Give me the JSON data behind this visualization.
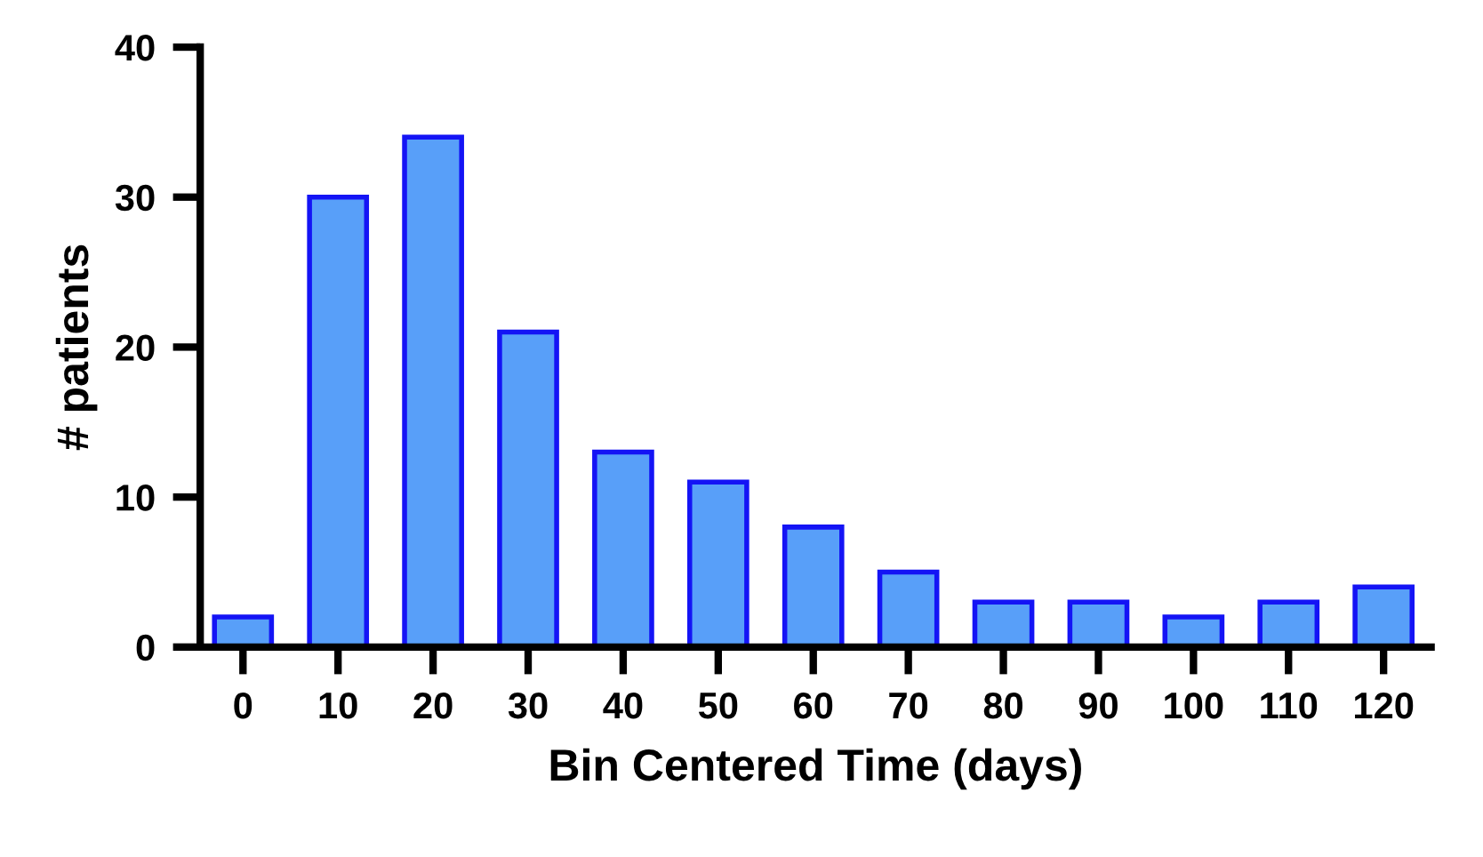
{
  "chart_data": {
    "type": "bar",
    "xlabel": "Bin Centered Time (days)",
    "ylabel": "# patients",
    "categories": [
      "0",
      "10",
      "20",
      "30",
      "40",
      "50",
      "60",
      "70",
      "80",
      "90",
      "100",
      "110",
      "120"
    ],
    "values": [
      2,
      30,
      34,
      21,
      13,
      11,
      8,
      5,
      3,
      3,
      2,
      3,
      4
    ],
    "color": "#589ff9",
    "ylim": [
      0,
      40
    ],
    "yticks": [
      0,
      10,
      20,
      30,
      40
    ],
    "grid": false,
    "legend": false
  }
}
